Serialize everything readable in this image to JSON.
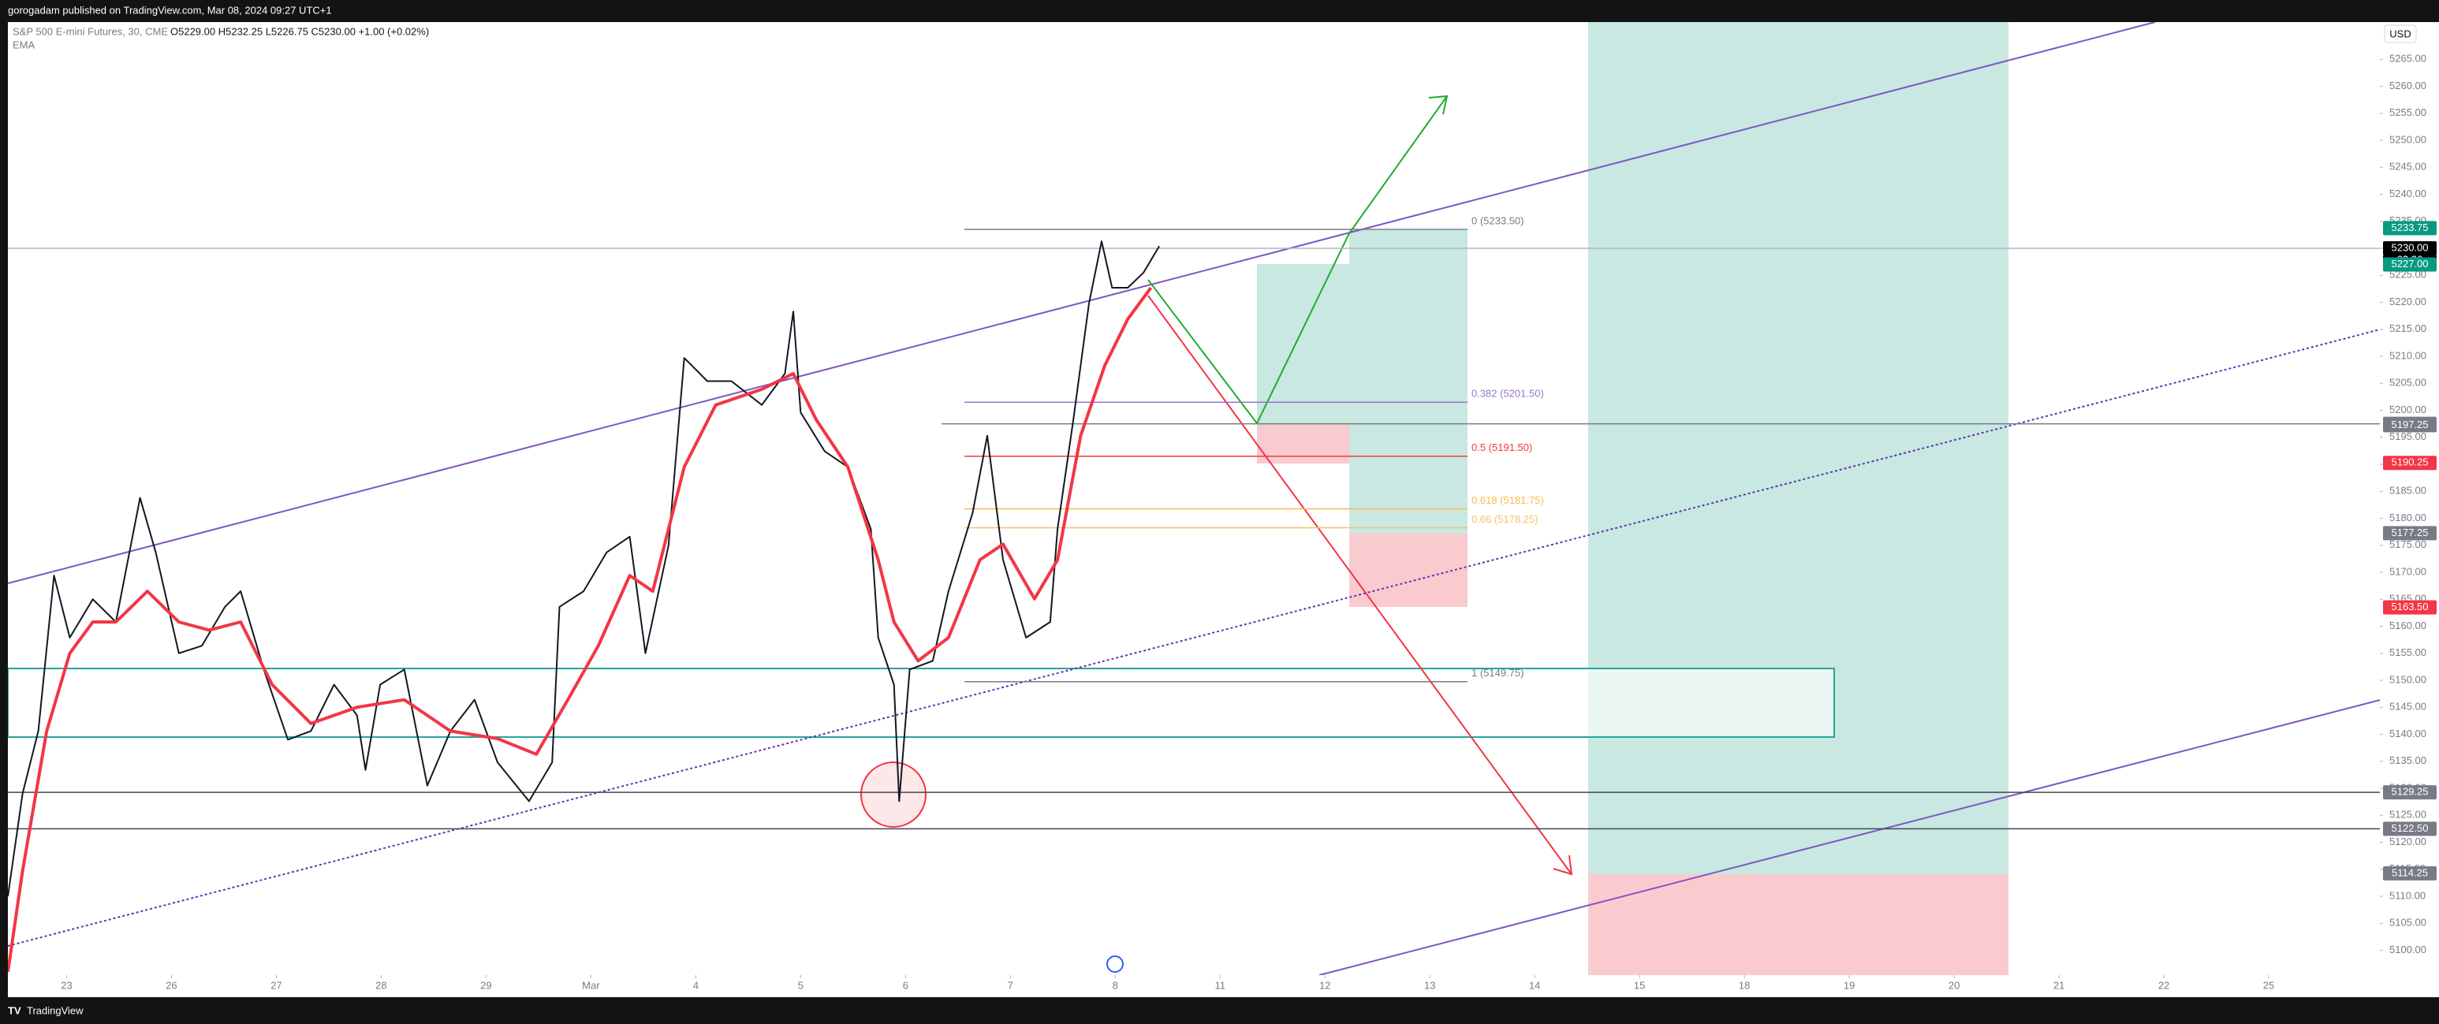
{
  "header": {
    "published": "gorogadam published on TradingView.com, Mar 08, 2024 09:27 UTC+1",
    "symbol": "S&P 500 E-mini Futures, 30, CME",
    "ohlc": "O5229.00 H5232.25 L5226.75 C5230.00 +1.00 (+0.02%)",
    "currency": "USD"
  },
  "footer": {
    "brand": "TradingView"
  },
  "chart_data": {
    "type": "line",
    "xlim": [
      -0.56,
      22.06
    ],
    "ylim": [
      5095.4,
      5271.9
    ],
    "grid": false,
    "xticks": [
      {
        "value": 0,
        "label": "23"
      },
      {
        "value": 1,
        "label": "26"
      },
      {
        "value": 2,
        "label": "27"
      },
      {
        "value": 3,
        "label": "28"
      },
      {
        "value": 4,
        "label": "29"
      },
      {
        "value": 5,
        "label": "Mar"
      },
      {
        "value": 6,
        "label": "4"
      },
      {
        "value": 7,
        "label": "5"
      },
      {
        "value": 8,
        "label": "6"
      },
      {
        "value": 9,
        "label": "7"
      },
      {
        "value": 10,
        "label": "8"
      },
      {
        "value": 11,
        "label": "11"
      },
      {
        "value": 12,
        "label": "12"
      },
      {
        "value": 13,
        "label": "13"
      },
      {
        "value": 14,
        "label": "14"
      },
      {
        "value": 15,
        "label": "15"
      },
      {
        "value": 16,
        "label": "18"
      },
      {
        "value": 17,
        "label": "19"
      },
      {
        "value": 18,
        "label": "20"
      },
      {
        "value": 19,
        "label": "21"
      },
      {
        "value": 20,
        "label": "22"
      },
      {
        "value": 21,
        "label": "25"
      }
    ],
    "yticks": [
      {
        "value": 5100,
        "label": "5100.00"
      },
      {
        "value": 5105,
        "label": "5105.00"
      },
      {
        "value": 5110,
        "label": "5110.00"
      },
      {
        "value": 5115,
        "label": "5115.00"
      },
      {
        "value": 5120,
        "label": "5120.00"
      },
      {
        "value": 5125,
        "label": "5125.00"
      },
      {
        "value": 5130,
        "label": "5130.00"
      },
      {
        "value": 5135,
        "label": "5135.00"
      },
      {
        "value": 5140,
        "label": "5140.00"
      },
      {
        "value": 5145,
        "label": "5145.00"
      },
      {
        "value": 5150,
        "label": "5150.00"
      },
      {
        "value": 5155,
        "label": "5155.00"
      },
      {
        "value": 5160,
        "label": "5160.00"
      },
      {
        "value": 5165,
        "label": "5165.00"
      },
      {
        "value": 5170,
        "label": "5170.00"
      },
      {
        "value": 5175,
        "label": "5175.00"
      },
      {
        "value": 5180,
        "label": "5180.00"
      },
      {
        "value": 5185,
        "label": "5185.00"
      },
      {
        "value": 5190,
        "label": "5190.00"
      },
      {
        "value": 5195,
        "label": "5195.00"
      },
      {
        "value": 5200,
        "label": "5200.00"
      },
      {
        "value": 5205,
        "label": "5205.00"
      },
      {
        "value": 5210,
        "label": "5210.00"
      },
      {
        "value": 5215,
        "label": "5215.00"
      },
      {
        "value": 5220,
        "label": "5220.00"
      },
      {
        "value": 5225,
        "label": "5225.00"
      },
      {
        "value": 5230,
        "label": "5230.00"
      },
      {
        "value": 5235,
        "label": "5235.00"
      },
      {
        "value": 5240,
        "label": "5240.00"
      },
      {
        "value": 5245,
        "label": "5245.00"
      },
      {
        "value": 5250,
        "label": "5250.00"
      },
      {
        "value": 5255,
        "label": "5255.00"
      },
      {
        "value": 5260,
        "label": "5260.00"
      },
      {
        "value": 5265,
        "label": "5265.00"
      }
    ],
    "series": [
      {
        "name": "S&P 500 E-mini Futures, 30, CME",
        "color": "#131722",
        "x": [
          -0.56,
          -0.42,
          -0.27,
          -0.12,
          0.03,
          0.25,
          0.47,
          0.7,
          0.85,
          1.07,
          1.29,
          1.51,
          1.66,
          1.88,
          2.11,
          2.33,
          2.55,
          2.77,
          2.85,
          2.99,
          3.22,
          3.44,
          3.66,
          3.89,
          4.11,
          4.41,
          4.63,
          4.7,
          4.93,
          5.15,
          5.37,
          5.52,
          5.74,
          5.89,
          6.11,
          6.34,
          6.63,
          6.85,
          6.93,
          7.0,
          7.23,
          7.45,
          7.67,
          7.74,
          7.89,
          7.94,
          8.04,
          8.26,
          8.41,
          8.64,
          8.78,
          8.93,
          9.15,
          9.38,
          9.45,
          9.6,
          9.75,
          9.87,
          9.97,
          10.12,
          10.27,
          10.42
        ],
        "values": [
          5110,
          5129,
          5140.6,
          5169.4,
          5157.9,
          5165,
          5160.8,
          5183.8,
          5173.7,
          5155,
          5156.4,
          5163.6,
          5166.5,
          5152,
          5139,
          5140.6,
          5149.2,
          5143.5,
          5133.4,
          5149.2,
          5152,
          5130.5,
          5140.6,
          5146.4,
          5134.8,
          5127.6,
          5134.8,
          5163.6,
          5166.5,
          5173.7,
          5176.6,
          5155,
          5175,
          5209.7,
          5205.4,
          5205.4,
          5201,
          5206.8,
          5218.3,
          5199.6,
          5192.4,
          5189.5,
          5178,
          5157.9,
          5149.2,
          5127.6,
          5152,
          5153.6,
          5166.5,
          5181,
          5195.3,
          5172.3,
          5157.9,
          5160.8,
          5178,
          5198.2,
          5219.8,
          5231.3,
          5222.7,
          5222.7,
          5225.5,
          5230.4
        ]
      },
      {
        "name": "EMA",
        "color": "#f23645",
        "x": [
          -0.56,
          -0.42,
          -0.19,
          0.03,
          0.25,
          0.47,
          0.77,
          1.07,
          1.36,
          1.66,
          1.96,
          2.33,
          2.77,
          3.22,
          3.66,
          4.11,
          4.48,
          4.78,
          5.07,
          5.37,
          5.59,
          5.89,
          6.19,
          6.63,
          6.93,
          7.15,
          7.45,
          7.74,
          7.89,
          8.12,
          8.41,
          8.71,
          8.93,
          9.23,
          9.45,
          9.67,
          9.9,
          10.12,
          10.34
        ],
        "values": [
          5096,
          5114.7,
          5140.6,
          5155,
          5160.8,
          5160.8,
          5166.5,
          5160.8,
          5159.3,
          5160.8,
          5149.2,
          5142,
          5145,
          5146.4,
          5140.6,
          5139.2,
          5136.3,
          5146.4,
          5156.4,
          5169.4,
          5166.5,
          5189.5,
          5201,
          5203.9,
          5206.8,
          5198.2,
          5189.5,
          5172.3,
          5160.8,
          5153.6,
          5157.9,
          5172.3,
          5175.2,
          5165.1,
          5172.3,
          5195.3,
          5208.3,
          5216.9,
          5222.7
        ]
      }
    ],
    "levels": [
      {
        "value": 5233.5,
        "label": "0 (5233.50)",
        "color": "#787b86"
      },
      {
        "value": 5201.5,
        "label": "0.382 (5201.50)",
        "color": "#9575cd"
      },
      {
        "value": 5191.5,
        "label": "0.5 (5191.50)",
        "color": "#f23645"
      },
      {
        "value": 5181.75,
        "label": "0.618 (5181.75)",
        "color": "#ffb74d"
      },
      {
        "value": 5178.25,
        "label": "0.66 (5178.25)",
        "color": "#f5c16c"
      },
      {
        "value": 5149.75,
        "label": "1 (5149.75)",
        "color": "#787b86"
      }
    ],
    "price_tags": [
      {
        "value": 5233.75,
        "label": "5233.75",
        "color": "#089981"
      },
      {
        "value": 5230,
        "label": "5230.00",
        "color": "#000000"
      },
      {
        "value": 5227,
        "label": "5227.00",
        "color": "#089981"
      },
      {
        "value": 5197.5,
        "label": "5197.50",
        "color": "#787b86"
      },
      {
        "value": 5197.25,
        "label": "5197.25",
        "color": "#787b86"
      },
      {
        "value": 5190.25,
        "label": "5190.25",
        "color": "#f23645"
      },
      {
        "value": 5177.25,
        "label": "5177.25",
        "color": "#787b86"
      },
      {
        "value": 5163.5,
        "label": "5163.50",
        "color": "#f23645"
      },
      {
        "value": 5129.25,
        "label": "5129.25",
        "color": "#787b86"
      },
      {
        "value": 5122.5,
        "label": "5122.50",
        "color": "#787b86"
      },
      {
        "value": 5114.25,
        "label": "5114.25",
        "color": "#787b86"
      }
    ],
    "countdown": "02:26"
  }
}
